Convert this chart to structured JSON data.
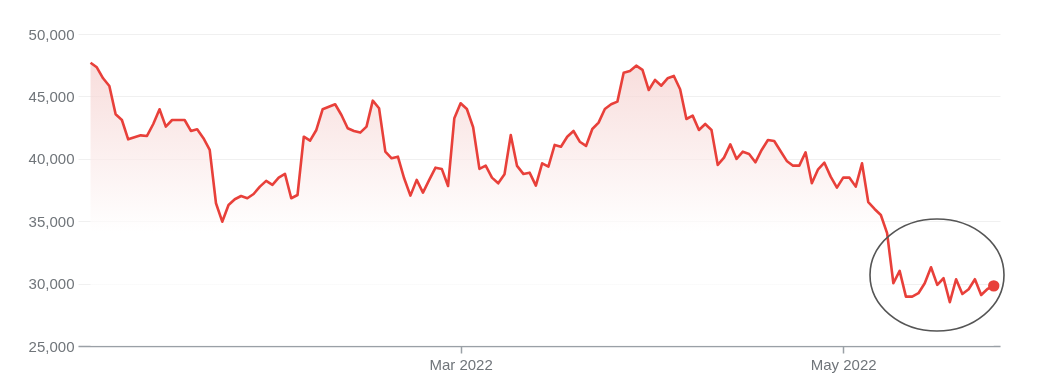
{
  "chart_data": {
    "type": "area",
    "x": [
      "2022-01-01",
      "2022-01-02",
      "2022-01-03",
      "2022-01-04",
      "2022-01-05",
      "2022-01-06",
      "2022-01-07",
      "2022-01-09",
      "2022-01-10",
      "2022-01-11",
      "2022-01-12",
      "2022-01-13",
      "2022-01-14",
      "2022-01-16",
      "2022-01-17",
      "2022-01-18",
      "2022-01-19",
      "2022-01-20",
      "2022-01-21",
      "2022-01-22",
      "2022-01-23",
      "2022-01-24",
      "2022-01-25",
      "2022-01-26",
      "2022-01-27",
      "2022-01-28",
      "2022-01-29",
      "2022-01-30",
      "2022-01-31",
      "2022-02-01",
      "2022-02-02",
      "2022-02-03",
      "2022-02-04",
      "2022-02-05",
      "2022-02-06",
      "2022-02-07",
      "2022-02-09",
      "2022-02-10",
      "2022-02-11",
      "2022-02-12",
      "2022-02-13",
      "2022-02-14",
      "2022-02-15",
      "2022-02-16",
      "2022-02-17",
      "2022-02-18",
      "2022-02-19",
      "2022-02-20",
      "2022-02-21",
      "2022-02-22",
      "2022-02-23",
      "2022-02-24",
      "2022-02-25",
      "2022-02-26",
      "2022-02-27",
      "2022-02-28",
      "2022-03-01",
      "2022-03-02",
      "2022-03-03",
      "2022-03-04",
      "2022-03-05",
      "2022-03-06",
      "2022-03-07",
      "2022-03-08",
      "2022-03-09",
      "2022-03-10",
      "2022-03-11",
      "2022-03-12",
      "2022-03-13",
      "2022-03-14",
      "2022-03-15",
      "2022-03-16",
      "2022-03-17",
      "2022-03-18",
      "2022-03-19",
      "2022-03-20",
      "2022-03-21",
      "2022-03-22",
      "2022-03-23",
      "2022-03-24",
      "2022-03-25",
      "2022-03-26",
      "2022-03-27",
      "2022-03-28",
      "2022-03-29",
      "2022-03-30",
      "2022-03-31",
      "2022-04-01",
      "2022-04-02",
      "2022-04-03",
      "2022-04-04",
      "2022-04-05",
      "2022-04-06",
      "2022-04-07",
      "2022-04-08",
      "2022-04-09",
      "2022-04-10",
      "2022-04-11",
      "2022-04-12",
      "2022-04-13",
      "2022-04-14",
      "2022-04-15",
      "2022-04-16",
      "2022-04-17",
      "2022-04-18",
      "2022-04-19",
      "2022-04-20",
      "2022-04-21",
      "2022-04-22",
      "2022-04-23",
      "2022-04-24",
      "2022-04-25",
      "2022-04-26",
      "2022-04-27",
      "2022-04-28",
      "2022-04-29",
      "2022-04-30",
      "2022-05-01",
      "2022-05-02",
      "2022-05-03",
      "2022-05-04",
      "2022-05-05",
      "2022-05-06",
      "2022-05-07",
      "2022-05-08",
      "2022-05-09",
      "2022-05-10",
      "2022-05-11",
      "2022-05-12",
      "2022-05-13",
      "2022-05-14",
      "2022-05-15",
      "2022-05-16",
      "2022-05-17",
      "2022-05-18",
      "2022-05-19",
      "2022-05-20",
      "2022-05-21",
      "2022-05-22",
      "2022-05-23",
      "2022-05-24",
      "2022-05-25"
    ],
    "series": [
      {
        "color": "#e8403a",
        "values": [
          47700,
          47330,
          46450,
          45830,
          43570,
          43110,
          41560,
          41880,
          41830,
          42790,
          43970,
          42580,
          43110,
          43110,
          42230,
          42370,
          41650,
          40710,
          36440,
          34960,
          36300,
          36760,
          37020,
          36840,
          37180,
          37770,
          38230,
          37910,
          38490,
          38790,
          36840,
          37100,
          41770,
          41450,
          42310,
          43970,
          44370,
          43510,
          42450,
          42230,
          42100,
          42580,
          44660,
          44050,
          40570,
          40040,
          40170,
          38440,
          37050,
          38310,
          37290,
          38310,
          39290,
          39190,
          37820,
          43250,
          44450,
          43990,
          42530,
          39190,
          39450,
          38490,
          38040,
          38760,
          41910,
          39430,
          38790,
          38890,
          37850,
          39640,
          39370,
          41110,
          40970,
          41770,
          42230,
          41370,
          41030,
          42390,
          42900,
          43990,
          44370,
          44580,
          46900,
          47040,
          47460,
          47120,
          45510,
          46320,
          45860,
          46450,
          46640,
          45570,
          43190,
          43460,
          42310,
          42790,
          42310,
          39510,
          40090,
          41160,
          39990,
          40570,
          40390,
          39720,
          40710,
          41510,
          41430,
          40630,
          39830,
          39450,
          39450,
          40520,
          38040,
          39160,
          39690,
          38570,
          37690,
          38490,
          38490,
          37770,
          39640,
          36520,
          35980,
          35500,
          34040,
          30030,
          31020,
          28960,
          28960,
          29230,
          30030,
          31310,
          29900,
          30430,
          28510,
          30350,
          29170,
          29550,
          30350,
          29090,
          29570,
          29820
        ]
      }
    ],
    "xlim": [
      "2021-12-30",
      "2022-05-26"
    ],
    "xticks": [
      {
        "value": "2022-03-01",
        "label": "Mar 2022"
      },
      {
        "value": "2022-05-01",
        "label": "May 2022"
      }
    ],
    "ylim": [
      25000,
      50000
    ],
    "yticks": [
      {
        "value": 25000,
        "label": "25,000"
      },
      {
        "value": 30000,
        "label": "30,000"
      },
      {
        "value": 35000,
        "label": "35,000"
      },
      {
        "value": 40000,
        "label": "40,000"
      },
      {
        "value": 45000,
        "label": "45,000"
      },
      {
        "value": 50000,
        "label": "50,000"
      }
    ],
    "grid": "y"
  }
}
